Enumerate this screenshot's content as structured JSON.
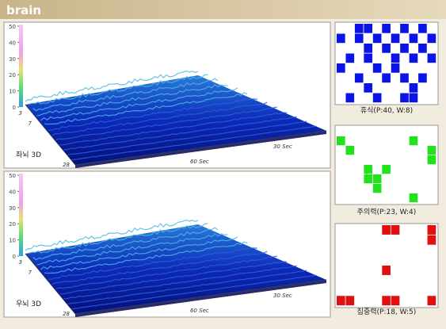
{
  "header": {
    "title": "brain"
  },
  "plots": [
    {
      "label": "좌뇌 3D",
      "zticks": [
        0,
        10,
        20,
        30,
        40,
        50
      ],
      "depth_labels": [
        "3",
        "7",
        "28"
      ],
      "time_labels": [
        "60 Sec",
        "30 Sec"
      ]
    },
    {
      "label": "우뇌 3D",
      "zticks": [
        0,
        10,
        20,
        30,
        40,
        50
      ],
      "depth_labels": [
        "3",
        "7",
        "28"
      ],
      "time_labels": [
        "60 Sec",
        "30 Sec"
      ]
    }
  ],
  "grids": [
    {
      "label": "휴식(P:40, W:8)",
      "color": "#0a14e6",
      "cells": [
        [
          0,
          2
        ],
        [
          0,
          3
        ],
        [
          0,
          5
        ],
        [
          0,
          7
        ],
        [
          0,
          9
        ],
        [
          1,
          0
        ],
        [
          1,
          2
        ],
        [
          1,
          4
        ],
        [
          1,
          6
        ],
        [
          1,
          8
        ],
        [
          1,
          10
        ],
        [
          2,
          3
        ],
        [
          2,
          5
        ],
        [
          2,
          7
        ],
        [
          2,
          9
        ],
        [
          3,
          1
        ],
        [
          3,
          3
        ],
        [
          3,
          6
        ],
        [
          3,
          8
        ],
        [
          3,
          10
        ],
        [
          4,
          0
        ],
        [
          4,
          4
        ],
        [
          4,
          6
        ],
        [
          5,
          2
        ],
        [
          5,
          5
        ],
        [
          5,
          7
        ],
        [
          5,
          9
        ],
        [
          6,
          3
        ],
        [
          6,
          8
        ],
        [
          7,
          1
        ],
        [
          7,
          4
        ],
        [
          7,
          7
        ],
        [
          7,
          8
        ]
      ]
    },
    {
      "label": "주의력(P:23, W:4)",
      "color": "#22e21c",
      "cells": [
        [
          1,
          0
        ],
        [
          1,
          8
        ],
        [
          2,
          1
        ],
        [
          2,
          10
        ],
        [
          3,
          10
        ],
        [
          4,
          3
        ],
        [
          4,
          5
        ],
        [
          5,
          3
        ],
        [
          5,
          4
        ],
        [
          6,
          4
        ],
        [
          7,
          8
        ]
      ]
    },
    {
      "label": "집중력(P:18, W:5)",
      "color": "#e01010",
      "cells": [
        [
          0,
          5
        ],
        [
          0,
          6
        ],
        [
          0,
          10
        ],
        [
          1,
          10
        ],
        [
          4,
          5
        ],
        [
          7,
          0
        ],
        [
          7,
          1
        ],
        [
          7,
          5
        ],
        [
          7,
          6
        ],
        [
          7,
          10
        ]
      ]
    }
  ]
}
